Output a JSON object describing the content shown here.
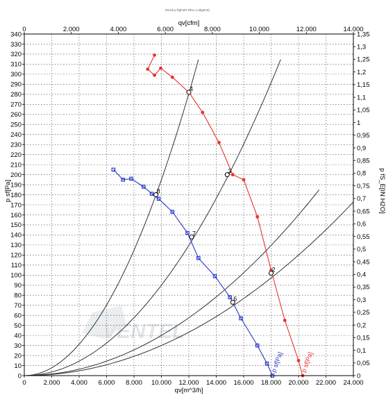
{
  "chart_data": {
    "type": "line",
    "header_text": "Druck p f(qFahr Rho=1,2kg/m3)",
    "xlabel_bottom": "qv[m^3/h]",
    "xlabel_top": "qv[cfm]",
    "ylabel_left": "p sf[Pa]",
    "ylabel_right": "p fS_E[IN H2O]",
    "xlim": [
      0,
      24000
    ],
    "ylim": [
      0,
      340
    ],
    "x2lim": [
      0,
      14000
    ],
    "y2lim": [
      0,
      1.35
    ],
    "x_ticks": [
      0,
      2000,
      4000,
      6000,
      8000,
      10000,
      12000,
      14000,
      16000,
      18000,
      20000,
      22000,
      24000
    ],
    "x_tick_labels": [
      "0",
      "2.000",
      "4.000",
      "6.000",
      "8.000",
      "10.000",
      "12.000",
      "14.000",
      "16.000",
      "18.000",
      "20.000",
      "22.000",
      "24.000"
    ],
    "x2_ticks": [
      0,
      2000,
      4000,
      6000,
      8000,
      10000,
      12000,
      14000
    ],
    "x2_tick_labels": [
      "0",
      "2.000",
      "4.000",
      "6.000",
      "8.000",
      "10.000",
      "12.000",
      "14.000"
    ],
    "y_ticks": [
      0,
      10,
      20,
      30,
      40,
      50,
      60,
      70,
      80,
      90,
      100,
      110,
      120,
      130,
      140,
      150,
      160,
      170,
      180,
      190,
      200,
      210,
      220,
      230,
      240,
      250,
      260,
      270,
      280,
      290,
      300,
      310,
      320,
      330,
      340
    ],
    "y2_ticks": [
      0,
      0.05,
      0.1,
      0.15,
      0.2,
      0.25,
      0.3,
      0.35,
      0.4,
      0.45,
      0.5,
      0.55,
      0.6,
      0.65,
      0.7,
      0.75,
      0.8,
      0.85,
      0.9,
      0.95,
      1.0,
      1.05,
      1.1,
      1.15,
      1.2,
      1.25,
      1.3,
      1.35
    ],
    "y2_tick_labels": [
      "0",
      "0,05",
      "0,1",
      "0,15",
      "0,2",
      "0,25",
      "0,3",
      "0,35",
      "0,4",
      "0,45",
      "0,5",
      "0,55",
      "0,6",
      "0,65",
      "0,7",
      "0,75",
      "0,8",
      "0,85",
      "0,9",
      "0,95",
      "1",
      "1,05",
      "1,1",
      "1,15",
      "1,2",
      "1,25",
      "1,3",
      "1,35"
    ],
    "grid": true,
    "series": [
      {
        "name": "p sf[Pa]",
        "color": "#e8332e",
        "marker": "circle",
        "x": [
          9500,
          9000,
          9500,
          9950,
          10800,
          12000,
          13000,
          14200,
          15200,
          16000,
          17000,
          18000,
          19000,
          20000,
          20300
        ],
        "y": [
          319,
          305,
          299,
          306,
          297,
          282,
          262,
          232,
          200,
          195,
          158,
          105,
          55,
          15,
          0
        ]
      },
      {
        "name": "p sf[Pa]",
        "color": "#2a39c8",
        "marker": "square",
        "x": [
          6500,
          7200,
          7800,
          8700,
          9300,
          9800,
          10800,
          11900,
          12700,
          13900,
          15000,
          15800,
          17000,
          17700,
          18100
        ],
        "y": [
          205,
          195,
          196,
          188,
          181,
          176,
          163,
          142,
          117,
          99,
          78,
          57,
          30,
          12,
          0
        ]
      }
    ],
    "system_curves": [
      {
        "k": 1.95e-06,
        "x_end": 12700
      },
      {
        "k": 9e-07,
        "x_end": 18700
      },
      {
        "k": 4e-07,
        "x_end": 21500
      },
      {
        "k": 3e-07,
        "x_end": 24000
      }
    ],
    "annotations": [
      {
        "text": "4",
        "x": 12000,
        "y": 282
      },
      {
        "text": "3",
        "x": 14800,
        "y": 200
      },
      {
        "text": "2",
        "x": 18000,
        "y": 102
      },
      {
        "text": "8",
        "x": 9600,
        "y": 180
      },
      {
        "text": "7",
        "x": 12200,
        "y": 138
      },
      {
        "text": "6",
        "x": 15200,
        "y": 73
      }
    ],
    "watermark": "VENTEL"
  }
}
